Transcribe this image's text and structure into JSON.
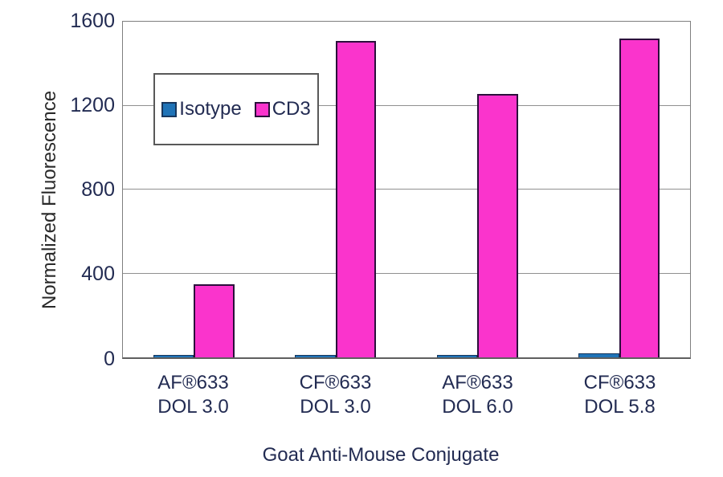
{
  "chart_data": {
    "type": "bar",
    "title": "",
    "categories": [
      {
        "line1": "AF®633",
        "line2": "DOL 3.0"
      },
      {
        "line1": "CF®633",
        "line2": "DOL 3.0"
      },
      {
        "line1": "AF®633",
        "line2": "DOL 6.0"
      },
      {
        "line1": "CF®633",
        "line2": "DOL 5.8"
      }
    ],
    "series": [
      {
        "name": "Isotype",
        "values": [
          10,
          10,
          10,
          20
        ],
        "fill": "#1F73B7",
        "border": "#17375E"
      },
      {
        "name": "CD3",
        "values": [
          350,
          1510,
          1255,
          1520
        ],
        "fill": "#FA34CC",
        "border": "#2B0F3B"
      }
    ],
    "xlabel": "Goat Anti-Mouse Conjugate",
    "ylabel": "Normalized Fluorescence",
    "ylim": [
      0,
      1600
    ],
    "yticks": [
      0,
      400,
      800,
      1200,
      1600
    ],
    "grid": true,
    "legend_position": "inside-upper-left"
  },
  "colors": {
    "background": "#FFFFFF",
    "text": "#222B52",
    "axis": "#7F7F7F",
    "gridline": "#909090"
  }
}
